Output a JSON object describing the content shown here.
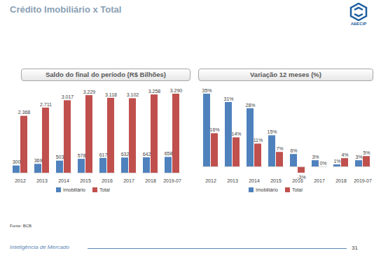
{
  "slide": {
    "title": "Crédito Imobiliário x Total",
    "logo": "ABECIP",
    "source": "Fonte: BCB",
    "footer": "Inteligência de Mercado",
    "page": "31"
  },
  "chart_data": [
    {
      "type": "bar",
      "title": "Saldo do final do período (R$ Bilhões)",
      "categories": [
        "2012",
        "2013",
        "2014",
        "2015",
        "2016",
        "2017",
        "2018",
        "2019-07"
      ],
      "series": [
        {
          "name": "Imobiliário",
          "color": "#4f81bd",
          "values": [
            300,
            369,
            503,
            578,
            617,
            632,
            642,
            658
          ],
          "value_labels": [
            "300",
            "369",
            "503",
            "578",
            "617",
            "632",
            "642",
            "658"
          ]
        },
        {
          "name": "Total",
          "color": "#c0504d",
          "values": [
            2368,
            2711,
            3017,
            3229,
            3118,
            3102,
            3258,
            3290
          ],
          "value_labels": [
            "2.368",
            "2.711",
            "3.017",
            "3.229",
            "3.118",
            "3.102",
            "3.258",
            "3.290"
          ]
        }
      ],
      "data_labels": true,
      "tick_labels": "x",
      "legend": "bottom"
    },
    {
      "type": "bar",
      "title": "Variação 12 meses (%)",
      "categories": [
        "2012",
        "2013",
        "2014",
        "2015",
        "2016",
        "2017",
        "2018",
        "2019-07"
      ],
      "series": [
        {
          "name": "Imobiliário",
          "color": "#4f81bd",
          "values": [
            35,
            31,
            28,
            15,
            6,
            3,
            1,
            3
          ],
          "value_labels": [
            "35%",
            "31%",
            "28%",
            "15%",
            "6%",
            "3%",
            "1%",
            "3%"
          ]
        },
        {
          "name": "Total",
          "color": "#c0504d",
          "values": [
            16,
            14,
            11,
            7,
            -3,
            0,
            4,
            5
          ],
          "value_labels": [
            "16%",
            "14%",
            "11%",
            "7%",
            "-3%",
            "0%",
            "4%",
            "5%"
          ]
        }
      ],
      "data_labels": true,
      "tick_labels": "x",
      "legend": "bottom"
    }
  ]
}
